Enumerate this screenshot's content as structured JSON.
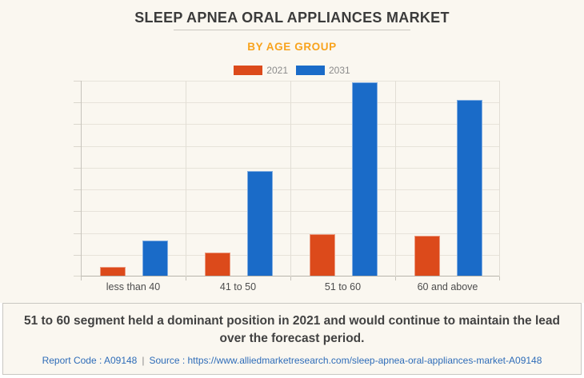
{
  "page": {
    "title": "SLEEP APNEA ORAL APPLIANCES MARKET",
    "subtitle": "BY AGE GROUP"
  },
  "colors": {
    "background": "#faf7f0",
    "series_2021": "#dc4a1b",
    "series_2031": "#1a6bc8",
    "subtitle_accent": "#f8a31d",
    "link_blue": "#2e6cb8",
    "title_text": "#3b3b3b"
  },
  "chart_data": {
    "type": "bar",
    "title": "SLEEP APNEA ORAL APPLIANCES MARKET",
    "subtitle": "BY AGE GROUP",
    "categories": [
      "less than 40",
      "41 to 50",
      "51 to 60",
      "60 and above"
    ],
    "series": [
      {
        "name": "2021",
        "color": "#dc4a1b",
        "values": [
          0.4,
          1.05,
          1.9,
          1.85
        ]
      },
      {
        "name": "2031",
        "color": "#1a6bc8",
        "values": [
          1.6,
          4.8,
          8.9,
          8.1
        ]
      }
    ],
    "xlabel": "",
    "ylabel": "",
    "ylim": [
      0,
      9
    ],
    "y_gridline_step": 1,
    "y_tick_labels_visible": false,
    "grid": true,
    "legend_position": "top"
  },
  "footer": {
    "summary_lines": [
      "51 to 60 segment held a dominant position in 2021 and would continue to maintain the lead",
      "over the forecast period."
    ],
    "report_code": "Report Code : A09148",
    "separator": "|",
    "source": "Source : https://www.alliedmarketresearch.com/sleep-apnea-oral-appliances-market-A09148"
  }
}
